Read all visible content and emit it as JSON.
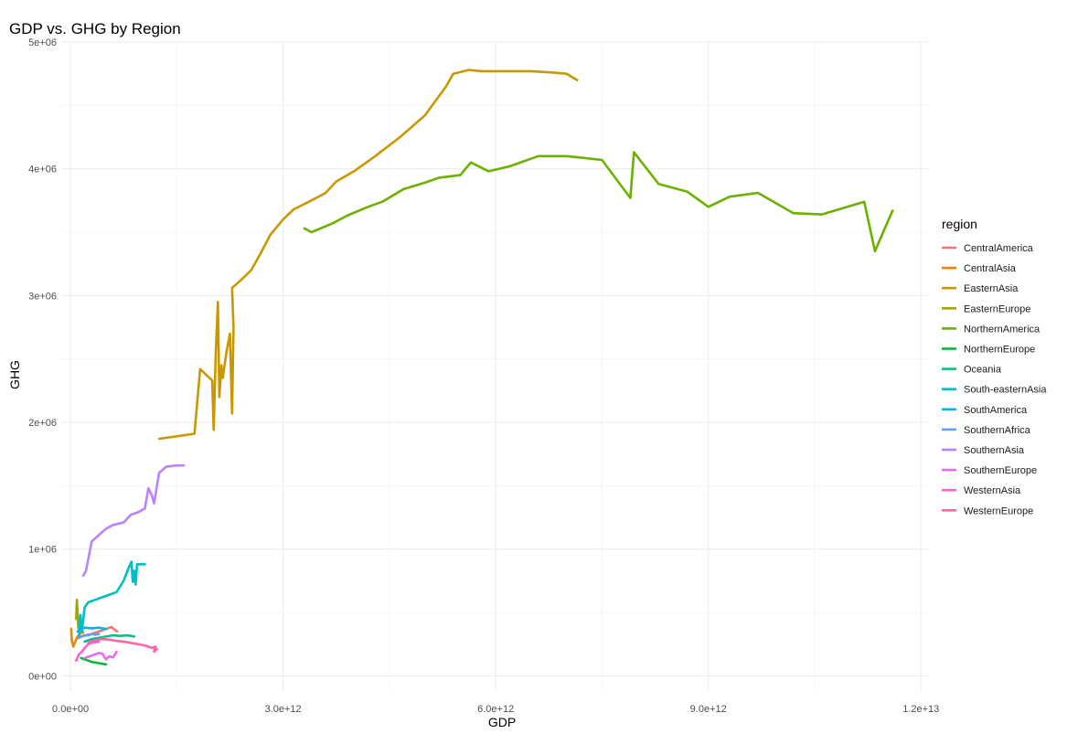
{
  "chart_data": {
    "type": "line",
    "title": "GDP vs. GHG by Region",
    "xlabel": "GDP",
    "ylabel": "GHG",
    "xlim": [
      -130000000000.0,
      12100000000000.0
    ],
    "ylim": [
      -120000.0,
      5000000.0
    ],
    "x_ticks": [
      0,
      3000000000000.0,
      6000000000000.0,
      9000000000000.0,
      12000000000000.0
    ],
    "x_tick_labels": [
      "0.0e+00",
      "3.0e+12",
      "6.0e+12",
      "9.0e+12",
      "1.2e+13"
    ],
    "y_ticks": [
      0,
      1000000.0,
      2000000.0,
      3000000.0,
      4000000.0,
      5000000.0
    ],
    "y_tick_labels": [
      "0e+00",
      "1e+06",
      "2e+06",
      "3e+06",
      "4e+06",
      "5e+06"
    ],
    "grid": true,
    "legend_title": "region",
    "legend_position": "right",
    "series": [
      {
        "name": "CentralAmerica",
        "color": "#F8766D",
        "x": [
          100000000000.0,
          200000000000.0,
          300000000000.0,
          400000000000.0,
          500000000000.0,
          580000000000.0,
          620000000000.0,
          660000000000.0
        ],
        "y": [
          300000.0,
          320000.0,
          330000.0,
          350000.0,
          370000.0,
          385000.0,
          365000.0,
          350000.0
        ]
      },
      {
        "name": "CentralAsia",
        "color": "#E58700",
        "x": [
          10000000000.0,
          20000000000.0,
          40000000000.0,
          60000000000.0,
          90000000000.0,
          130000000000.0,
          170000000000.0
        ],
        "y": [
          370000.0,
          280000.0,
          230000.0,
          260000.0,
          300000.0,
          330000.0,
          350000.0
        ]
      },
      {
        "name": "EasternAsia",
        "color": "#C99800",
        "x": [
          1250000000000.0,
          1500000000000.0,
          1750000000000.0,
          1830000000000.0,
          2000000000000.0,
          2020000000000.0,
          2050000000000.0,
          2080000000000.0,
          2100000000000.0,
          2130000000000.0,
          2150000000000.0,
          2200000000000.0,
          2250000000000.0,
          2280000000000.0,
          2300000000000.0,
          2280000000000.0,
          2320000000000.0,
          2420000000000.0,
          2550000000000.0,
          2680000000000.0,
          2820000000000.0,
          3000000000000.0,
          3150000000000.0,
          3400000000000.0,
          3600000000000.0,
          3750000000000.0,
          4000000000000.0,
          4300000000000.0,
          4650000000000.0,
          5000000000000.0,
          5300000000000.0,
          5400000000000.0,
          5620000000000.0,
          5800000000000.0,
          6100000000000.0,
          6500000000000.0,
          6800000000000.0,
          7000000000000.0,
          7150000000000.0
        ],
        "y": [
          1870000.0,
          1890000.0,
          1910000.0,
          2420000.0,
          2330000.0,
          1940000.0,
          2550000.0,
          2950000.0,
          2200000.0,
          2450000.0,
          2350000.0,
          2550000.0,
          2700000.0,
          2070000.0,
          2750000.0,
          3060000.0,
          3080000.0,
          3130000.0,
          3200000.0,
          3330000.0,
          3480000.0,
          3600000.0,
          3680000.0,
          3750000.0,
          3810000.0,
          3900000.0,
          3980000.0,
          4100000.0,
          4250000.0,
          4420000.0,
          4650000.0,
          4750000.0,
          4780000.0,
          4770000.0,
          4770000.0,
          4770000.0,
          4760000.0,
          4750000.0,
          4700000.0
        ]
      },
      {
        "name": "EasternEurope",
        "color": "#A3A500",
        "x": [
          80000000000.0,
          90000000000.0,
          100000000000.0,
          110000000000.0,
          130000000000.0,
          150000000000.0,
          180000000000.0
        ],
        "y": [
          450000.0,
          600000.0,
          500000.0,
          380000.0,
          360000.0,
          350000.0,
          340000.0
        ]
      },
      {
        "name": "NorthernAmerica",
        "color": "#6BB100",
        "x": [
          3300000000000.0,
          3400000000000.0,
          3700000000000.0,
          3900000000000.0,
          4200000000000.0,
          4400000000000.0,
          4700000000000.0,
          5000000000000.0,
          5200000000000.0,
          5500000000000.0,
          5650000000000.0,
          5900000000000.0,
          6200000000000.0,
          6600000000000.0,
          7000000000000.0,
          7500000000000.0,
          7900000000000.0,
          7950000000000.0,
          8300000000000.0,
          8700000000000.0,
          9000000000000.0,
          9300000000000.0,
          9700000000000.0,
          10200000000000.0,
          10600000000000.0,
          11200000000000.0,
          11350000000000.0,
          11600000000000.0
        ],
        "y": [
          3530000.0,
          3500000.0,
          3570000.0,
          3630000.0,
          3700000.0,
          3740000.0,
          3840000.0,
          3890000.0,
          3930000.0,
          3950000.0,
          4050000.0,
          3980000.0,
          4020000.0,
          4100000.0,
          4100000.0,
          4070000.0,
          3770000.0,
          4130000.0,
          3880000.0,
          3820000.0,
          3700000.0,
          3780000.0,
          3810000.0,
          3650000.0,
          3640000.0,
          3740000.0,
          3350000.0,
          3670000.0
        ]
      },
      {
        "name": "NorthernEurope",
        "color": "#00BA38",
        "x": [
          150000000000.0,
          200000000000.0,
          250000000000.0,
          300000000000.0,
          350000000000.0,
          400000000000.0,
          450000000000.0,
          500000000000.0
        ],
        "y": [
          140000.0,
          130000.0,
          120000.0,
          110000.0,
          105000.0,
          100000.0,
          95000.0,
          90000.0
        ]
      },
      {
        "name": "Oceania",
        "color": "#00C08B",
        "x": [
          200000000000.0,
          300000000000.0,
          400000000000.0,
          500000000000.0,
          600000000000.0,
          700000000000.0,
          800000000000.0,
          900000000000.0
        ],
        "y": [
          270000.0,
          290000.0,
          300000.0,
          310000.0,
          320000.0,
          315000.0,
          320000.0,
          310000.0
        ]
      },
      {
        "name": "South-easternAsia",
        "color": "#00BFC4",
        "x": [
          120000000000.0,
          140000000000.0,
          160000000000.0,
          200000000000.0,
          250000000000.0,
          350000000000.0,
          500000000000.0,
          650000000000.0,
          750000000000.0,
          820000000000.0,
          860000000000.0,
          880000000000.0,
          900000000000.0,
          920000000000.0,
          940000000000.0,
          1050000000000.0
        ],
        "y": [
          300000.0,
          480000.0,
          350000.0,
          540000.0,
          580000.0,
          600000.0,
          630000.0,
          660000.0,
          750000.0,
          850000.0,
          900000.0,
          740000.0,
          830000.0,
          720000.0,
          880000.0,
          880000.0
        ]
      },
      {
        "name": "SouthAmerica",
        "color": "#00B4EF",
        "x": [
          100000000000.0,
          150000000000.0,
          200000000000.0,
          300000000000.0,
          400000000000.0,
          500000000000.0
        ],
        "y": [
          350000.0,
          370000.0,
          380000.0,
          375000.0,
          380000.0,
          370000.0
        ]
      },
      {
        "name": "SouthernAfrica",
        "color": "#619CFF",
        "x": [
          120000000000.0,
          180000000000.0,
          250000000000.0,
          300000000000.0,
          350000000000.0,
          400000000000.0
        ],
        "y": [
          300000.0,
          315000.0,
          320000.0,
          330000.0,
          325000.0,
          330000.0
        ]
      },
      {
        "name": "SouthernAsia",
        "color": "#B983FF",
        "x": [
          180000000000.0,
          220000000000.0,
          300000000000.0,
          400000000000.0,
          500000000000.0,
          600000000000.0,
          750000000000.0,
          850000000000.0,
          950000000000.0,
          1050000000000.0,
          1100000000000.0,
          1150000000000.0,
          1180000000000.0,
          1250000000000.0,
          1350000000000.0,
          1500000000000.0,
          1600000000000.0
        ],
        "y": [
          790000.0,
          830000.0,
          1060000.0,
          1110000.0,
          1160000.0,
          1190000.0,
          1210000.0,
          1270000.0,
          1290000.0,
          1320000.0,
          1480000.0,
          1420000.0,
          1360000.0,
          1600000.0,
          1650000.0,
          1660000.0,
          1660000.0
        ]
      },
      {
        "name": "SouthernEurope",
        "color": "#E76BF3",
        "x": [
          200000000000.0,
          250000000000.0,
          300000000000.0,
          350000000000.0,
          400000000000.0,
          450000000000.0,
          500000000000.0,
          550000000000.0,
          600000000000.0,
          650000000000.0
        ],
        "y": [
          140000.0,
          150000.0,
          160000.0,
          170000.0,
          180000.0,
          175000.0,
          130000.0,
          155000.0,
          145000.0,
          190000.0
        ]
      },
      {
        "name": "WesternAsia",
        "color": "#FD61D1",
        "x": [
          80000000000.0,
          120000000000.0,
          160000000000.0,
          200000000000.0,
          250000000000.0,
          300000000000.0,
          350000000000.0,
          400000000000.0
        ],
        "y": [
          120000.0,
          170000.0,
          190000.0,
          220000.0,
          250000.0,
          260000.0,
          265000.0,
          270000.0
        ]
      },
      {
        "name": "WesternEurope",
        "color": "#FF67A4",
        "x": [
          250000000000.0,
          350000000000.0,
          450000000000.0,
          550000000000.0,
          650000000000.0,
          750000000000.0,
          850000000000.0,
          950000000000.0,
          1050000000000.0,
          1150000000000.0,
          1200000000000.0,
          1180000000000.0,
          1220000000000.0
        ],
        "y": [
          260000.0,
          280000.0,
          290000.0,
          285000.0,
          275000.0,
          270000.0,
          260000.0,
          250000.0,
          240000.0,
          220000.0,
          230000.0,
          190000.0,
          210000.0
        ]
      }
    ]
  }
}
